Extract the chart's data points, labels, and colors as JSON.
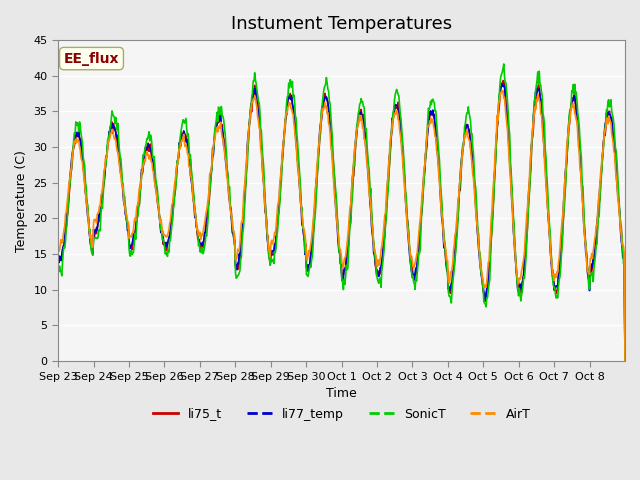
{
  "title": "Instument Temperatures",
  "xlabel": "Time",
  "ylabel": "Temperature (C)",
  "ylim": [
    0,
    45
  ],
  "yticks": [
    0,
    5,
    10,
    15,
    20,
    25,
    30,
    35,
    40,
    45
  ],
  "x_labels": [
    "Sep 23",
    "Sep 24",
    "Sep 25",
    "Sep 26",
    "Sep 27",
    "Sep 28",
    "Sep 29",
    "Sep 30",
    "Oct 1",
    "Oct 2",
    "Oct 3",
    "Oct 4",
    "Oct 5",
    "Oct 6",
    "Oct 7",
    "Oct 8"
  ],
  "annotation_text": "EE_flux",
  "annotation_color": "#8B0000",
  "annotation_bg": "#FFFFF0",
  "colors": {
    "li75_t": "#CC0000",
    "li77_temp": "#0000CC",
    "SonicT": "#00CC00",
    "AirT": "#FF8C00"
  },
  "legend_labels": [
    "li75_t",
    "li77_temp",
    "SonicT",
    "AirT"
  ],
  "bg_color": "#E8E8E8",
  "plot_bg": "#F5F5F5",
  "grid_color": "#FFFFFF",
  "n_days": 16,
  "pts_per_day": 48,
  "day_peaks": [
    32,
    33,
    30,
    32,
    34,
    38,
    37,
    37,
    35,
    36,
    35,
    33,
    39,
    38,
    37,
    35
  ],
  "day_troughs": [
    14,
    18,
    16,
    16,
    16,
    13,
    15,
    13,
    12,
    12,
    12,
    10,
    9,
    10,
    10,
    13
  ],
  "sonic_extra": [
    1.5,
    1.5,
    1.5,
    1.5,
    1.5,
    1.5,
    2.0,
    2.0,
    1.5,
    1.5,
    2.0,
    2.0,
    2.0,
    2.0,
    1.5,
    1.5
  ]
}
